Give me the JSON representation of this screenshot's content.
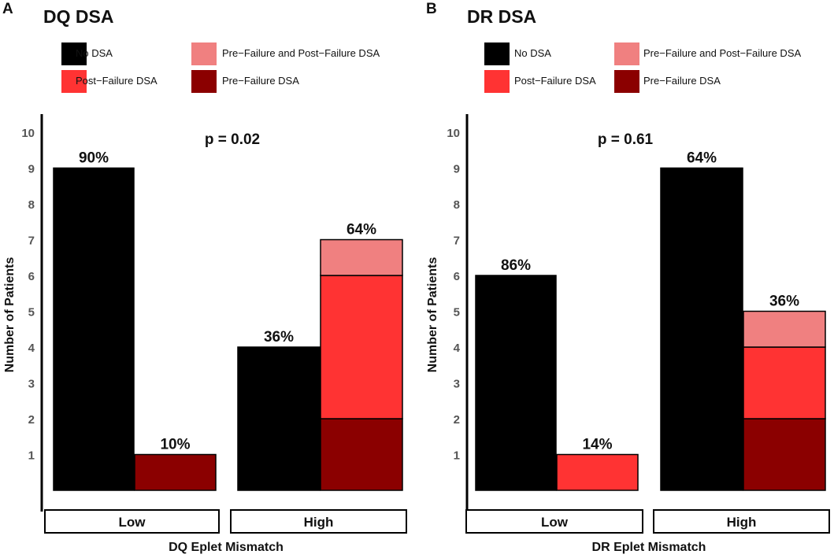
{
  "colors": {
    "No DSA": "#000000",
    "Pre-Failure and Post-Failure DSA": "#f08080",
    "Post-Failure DSA": "#ff3333",
    "Pre-Failure DSA": "#8b0000"
  },
  "chart_data": [
    {
      "type": "bar",
      "stacked": true,
      "panel": "A",
      "title": "DQ DSA",
      "xlabel": "DQ Eplet Mismatch",
      "ylabel": "Number of Patients",
      "ylim": [
        0,
        10
      ],
      "yticks": [
        1,
        2,
        3,
        4,
        5,
        6,
        7,
        8,
        9,
        10
      ],
      "p_value": "p = 0.02",
      "legend": [
        "No DSA",
        "Pre-Failure and Post-Failure DSA",
        "Post-Failure DSA",
        "Pre-Failure DSA"
      ],
      "groups": [
        {
          "label": "Low",
          "bars": [
            {
              "label": "90%",
              "segments": [
                {
                  "series": "No DSA",
                  "value": 9
                }
              ]
            },
            {
              "label": "10%",
              "segments": [
                {
                  "series": "Pre-Failure DSA",
                  "value": 1
                }
              ]
            }
          ]
        },
        {
          "label": "High",
          "bars": [
            {
              "label": "36%",
              "segments": [
                {
                  "series": "No DSA",
                  "value": 4
                }
              ]
            },
            {
              "label": "64%",
              "segments": [
                {
                  "series": "Pre-Failure DSA",
                  "value": 2
                },
                {
                  "series": "Post-Failure DSA",
                  "value": 4
                },
                {
                  "series": "Pre-Failure and Post-Failure DSA",
                  "value": 1
                }
              ]
            }
          ]
        }
      ]
    },
    {
      "type": "bar",
      "stacked": true,
      "panel": "B",
      "title": "DR DSA",
      "xlabel": "DR Eplet Mismatch",
      "ylabel": "Number of Patients",
      "ylim": [
        0,
        10
      ],
      "yticks": [
        1,
        2,
        3,
        4,
        5,
        6,
        7,
        8,
        9,
        10
      ],
      "p_value": "p = 0.61",
      "legend": [
        "No DSA",
        "Pre-Failure and Post-Failure DSA",
        "Post-Failure DSA",
        "Pre-Failure DSA"
      ],
      "groups": [
        {
          "label": "Low",
          "bars": [
            {
              "label": "86%",
              "segments": [
                {
                  "series": "No DSA",
                  "value": 6
                }
              ]
            },
            {
              "label": "14%",
              "segments": [
                {
                  "series": "Post-Failure DSA",
                  "value": 1
                }
              ]
            }
          ]
        },
        {
          "label": "High",
          "bars": [
            {
              "label": "64%",
              "segments": [
                {
                  "series": "No DSA",
                  "value": 9
                }
              ]
            },
            {
              "label": "36%",
              "segments": [
                {
                  "series": "Pre-Failure DSA",
                  "value": 2
                },
                {
                  "series": "Post-Failure DSA",
                  "value": 2
                },
                {
                  "series": "Pre-Failure and Post-Failure DSA",
                  "value": 1
                }
              ]
            }
          ]
        }
      ]
    }
  ]
}
